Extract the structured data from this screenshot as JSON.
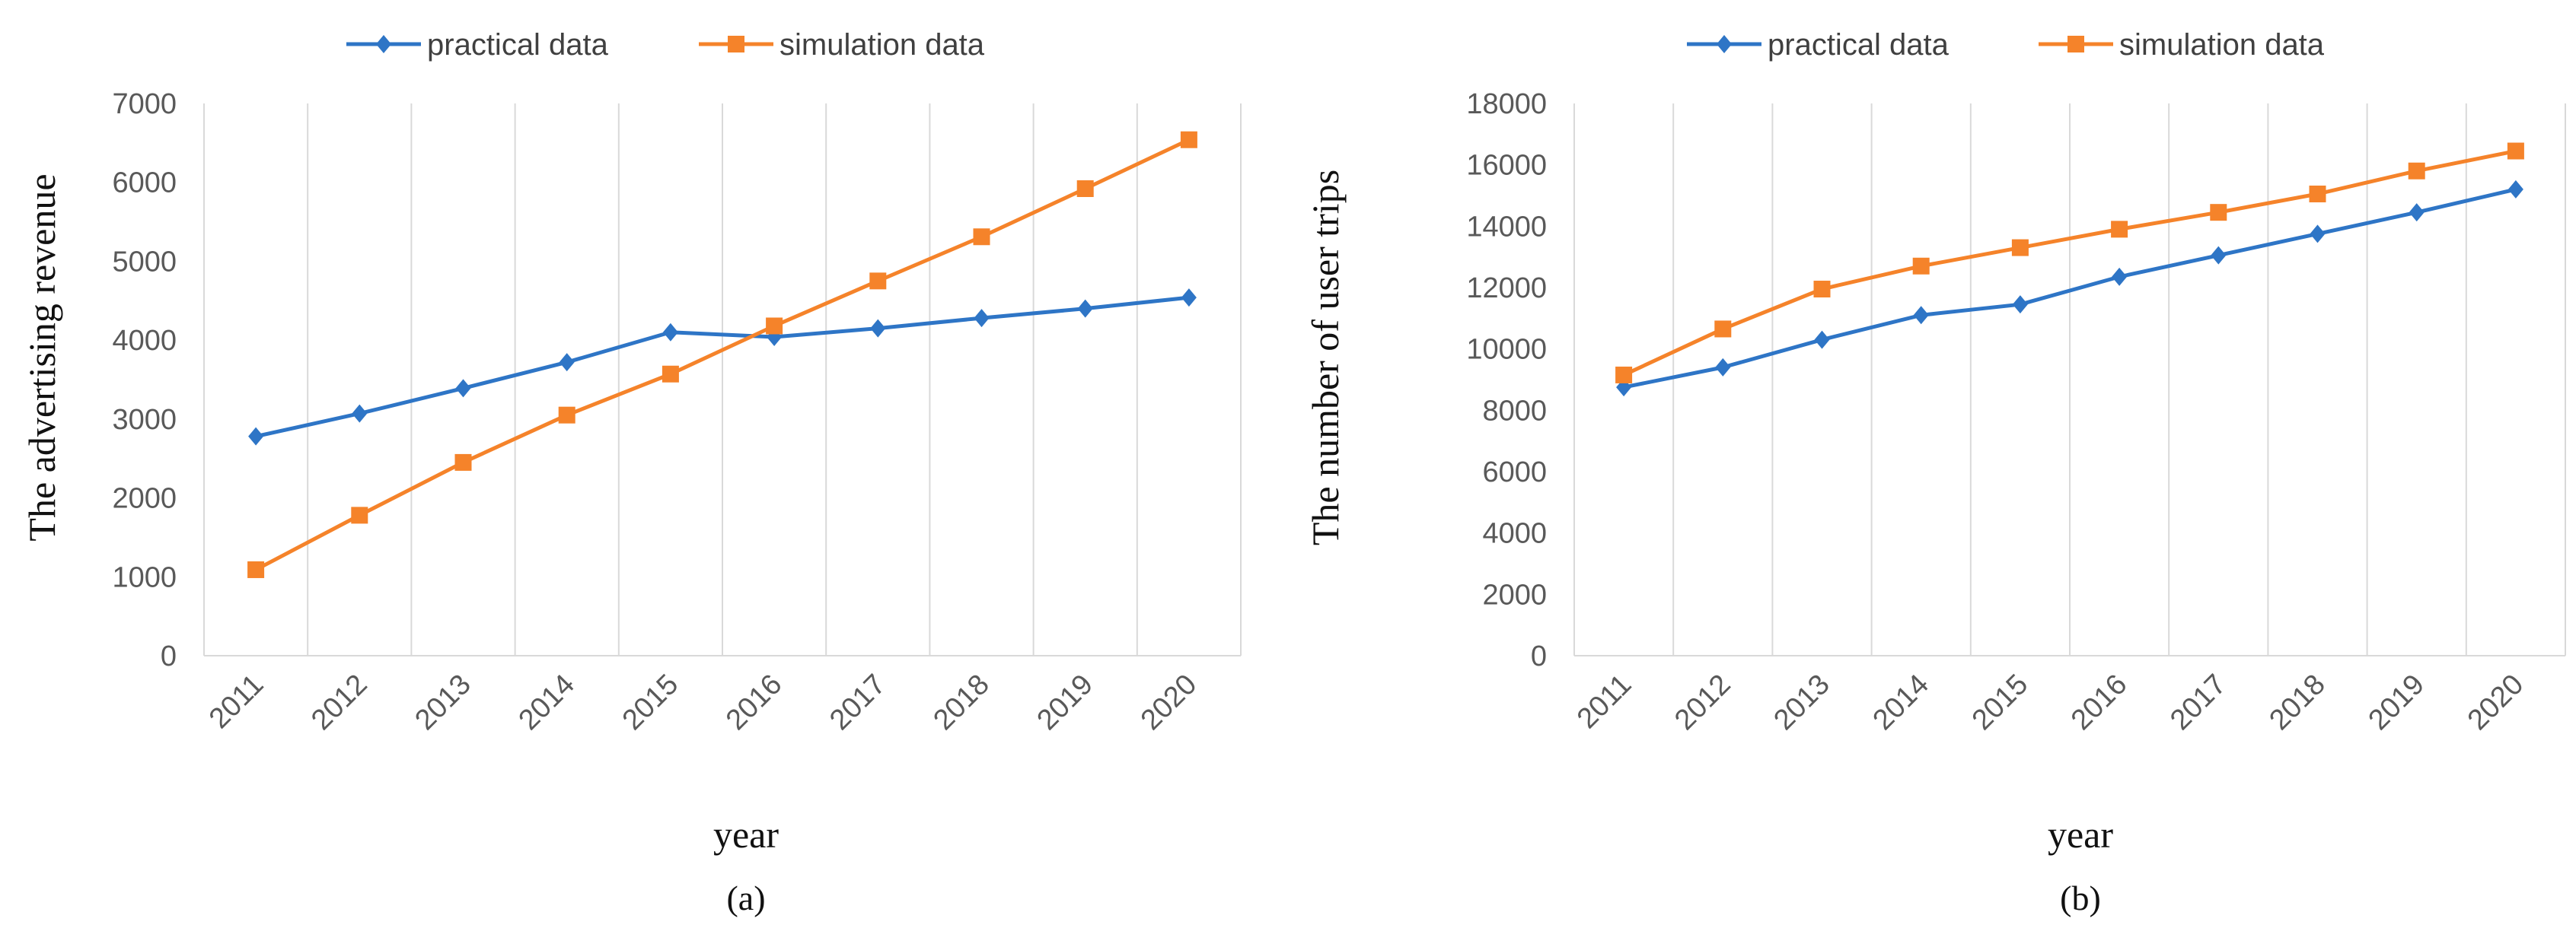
{
  "chart_data": [
    {
      "type": "line",
      "panel_label": "(a)",
      "ylabel": "The advertising revenue",
      "xlabel": "year",
      "categories": [
        "2011",
        "2012",
        "2013",
        "2014",
        "2015",
        "2016",
        "2017",
        "2018",
        "2019",
        "2020"
      ],
      "ylim": [
        0,
        7000
      ],
      "yticks": [
        0,
        1000,
        2000,
        3000,
        4000,
        5000,
        6000,
        7000
      ],
      "grid": "vertical",
      "legend_position": "top",
      "series": [
        {
          "name": "practical data",
          "color": "#2E75C6",
          "marker": "diamond",
          "values": [
            2780,
            3070,
            3390,
            3720,
            4100,
            4040,
            4150,
            4280,
            4400,
            4540
          ]
        },
        {
          "name": "simulation data",
          "color": "#F5832A",
          "marker": "square",
          "values": [
            1090,
            1780,
            2450,
            3050,
            3570,
            4180,
            4750,
            5310,
            5920,
            6540
          ]
        }
      ]
    },
    {
      "type": "line",
      "panel_label": "(b)",
      "ylabel": "The number of user trips",
      "xlabel": "year",
      "categories": [
        "2011",
        "2012",
        "2013",
        "2014",
        "2015",
        "2016",
        "2017",
        "2018",
        "2019",
        "2020"
      ],
      "ylim": [
        0,
        18000
      ],
      "yticks": [
        0,
        2000,
        4000,
        6000,
        8000,
        10000,
        12000,
        14000,
        16000,
        18000
      ],
      "grid": "vertical",
      "legend_position": "top",
      "series": [
        {
          "name": "practical data",
          "color": "#2E75C6",
          "marker": "diamond",
          "values": [
            8750,
            9400,
            10300,
            11100,
            11450,
            12350,
            13050,
            13750,
            14450,
            15200
          ]
        },
        {
          "name": "simulation data",
          "color": "#F5832A",
          "marker": "square",
          "values": [
            9150,
            10650,
            11950,
            12700,
            13300,
            13900,
            14450,
            15050,
            15800,
            16450
          ]
        }
      ]
    }
  ]
}
